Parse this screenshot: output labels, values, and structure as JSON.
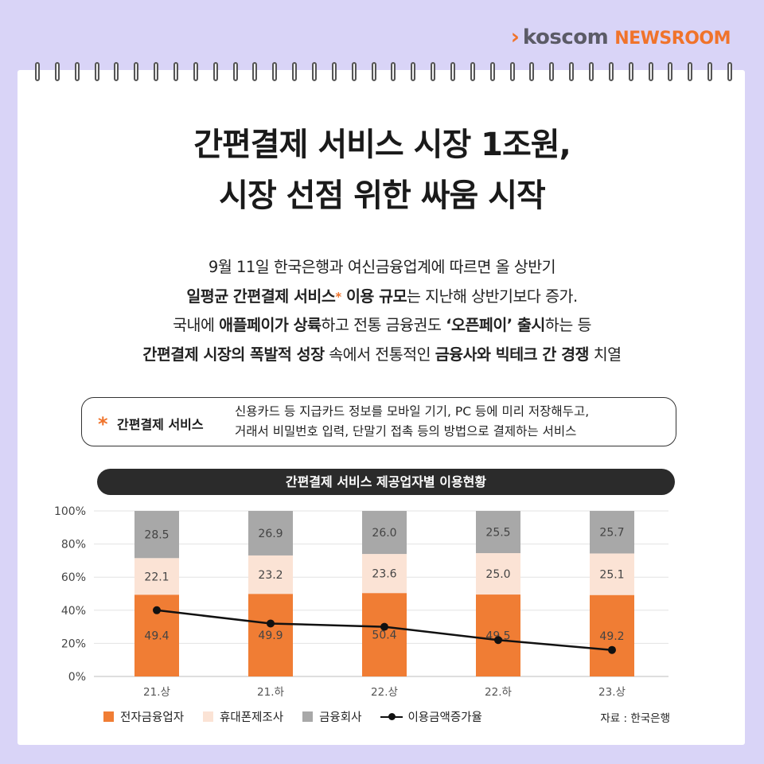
{
  "brand": {
    "chevron": "›",
    "name": "koscom",
    "newsroom": "NEWSROOM"
  },
  "title": {
    "line1": "간편결제 서비스 시장 1조원,",
    "line2": "시장 선점 위한 싸움 시작"
  },
  "lead": {
    "l1": "9월 11일 한국은행과 여신금융업계에 따르면 올 상반기",
    "l2_b1": "일평균 간편결제 서비스",
    "l2_star": "*",
    "l2_b2": " 이용 규모",
    "l2_t": "는 지난해 상반기보다 증가.",
    "l3_t1": "국내에 ",
    "l3_b1": "애플페이가 상륙",
    "l3_t2": "하고 전통 금융권도 ",
    "l3_b2": "‘오픈페이’ 출시",
    "l3_t3": "하는 등",
    "l4_b1": "간편결제 시장의 폭발적 성장",
    "l4_t1": " 속에서 전통적인 ",
    "l4_b2": "금융사와 빅테크 간 경쟁",
    "l4_t2": " 치열"
  },
  "definition": {
    "asterisk": "*",
    "term": "간편결제 서비스",
    "line1": "신용카드 등 지급카드 정보를 모바일 기기, PC 등에 미리 저장해두고,",
    "line2": "거래서 비밀번호 입력, 단말기 접촉 등의 방법으로 결제하는 서비스"
  },
  "chart_title": "간편결제 서비스 제공업자별 이용현황",
  "source": "자료 : 한국은행",
  "colors": {
    "electronic": "#f07d34",
    "mobile": "#fbe3d5",
    "financial": "#a8a8a8",
    "line": "#111111",
    "accent": "#f0732b"
  },
  "chart_data": {
    "type": "bar",
    "stacked": true,
    "categories": [
      "21.상",
      "21.하",
      "22.상",
      "22.하",
      "23.상"
    ],
    "series": [
      {
        "name": "전자금융업자",
        "values": [
          49.4,
          49.9,
          50.4,
          49.5,
          49.2
        ]
      },
      {
        "name": "휴대폰제조사",
        "values": [
          22.1,
          23.2,
          23.6,
          25.0,
          25.1
        ]
      },
      {
        "name": "금융회사",
        "values": [
          28.5,
          26.9,
          26.0,
          25.5,
          25.7
        ]
      }
    ],
    "line_series": {
      "name": "이용금액증가율",
      "values": [
        40,
        32,
        30,
        22,
        16
      ]
    },
    "y_ticks": [
      "0%",
      "20%",
      "40%",
      "60%",
      "80%",
      "100%"
    ],
    "ylim": [
      0,
      100
    ],
    "grid": true,
    "legend_position": "bottom-left"
  }
}
